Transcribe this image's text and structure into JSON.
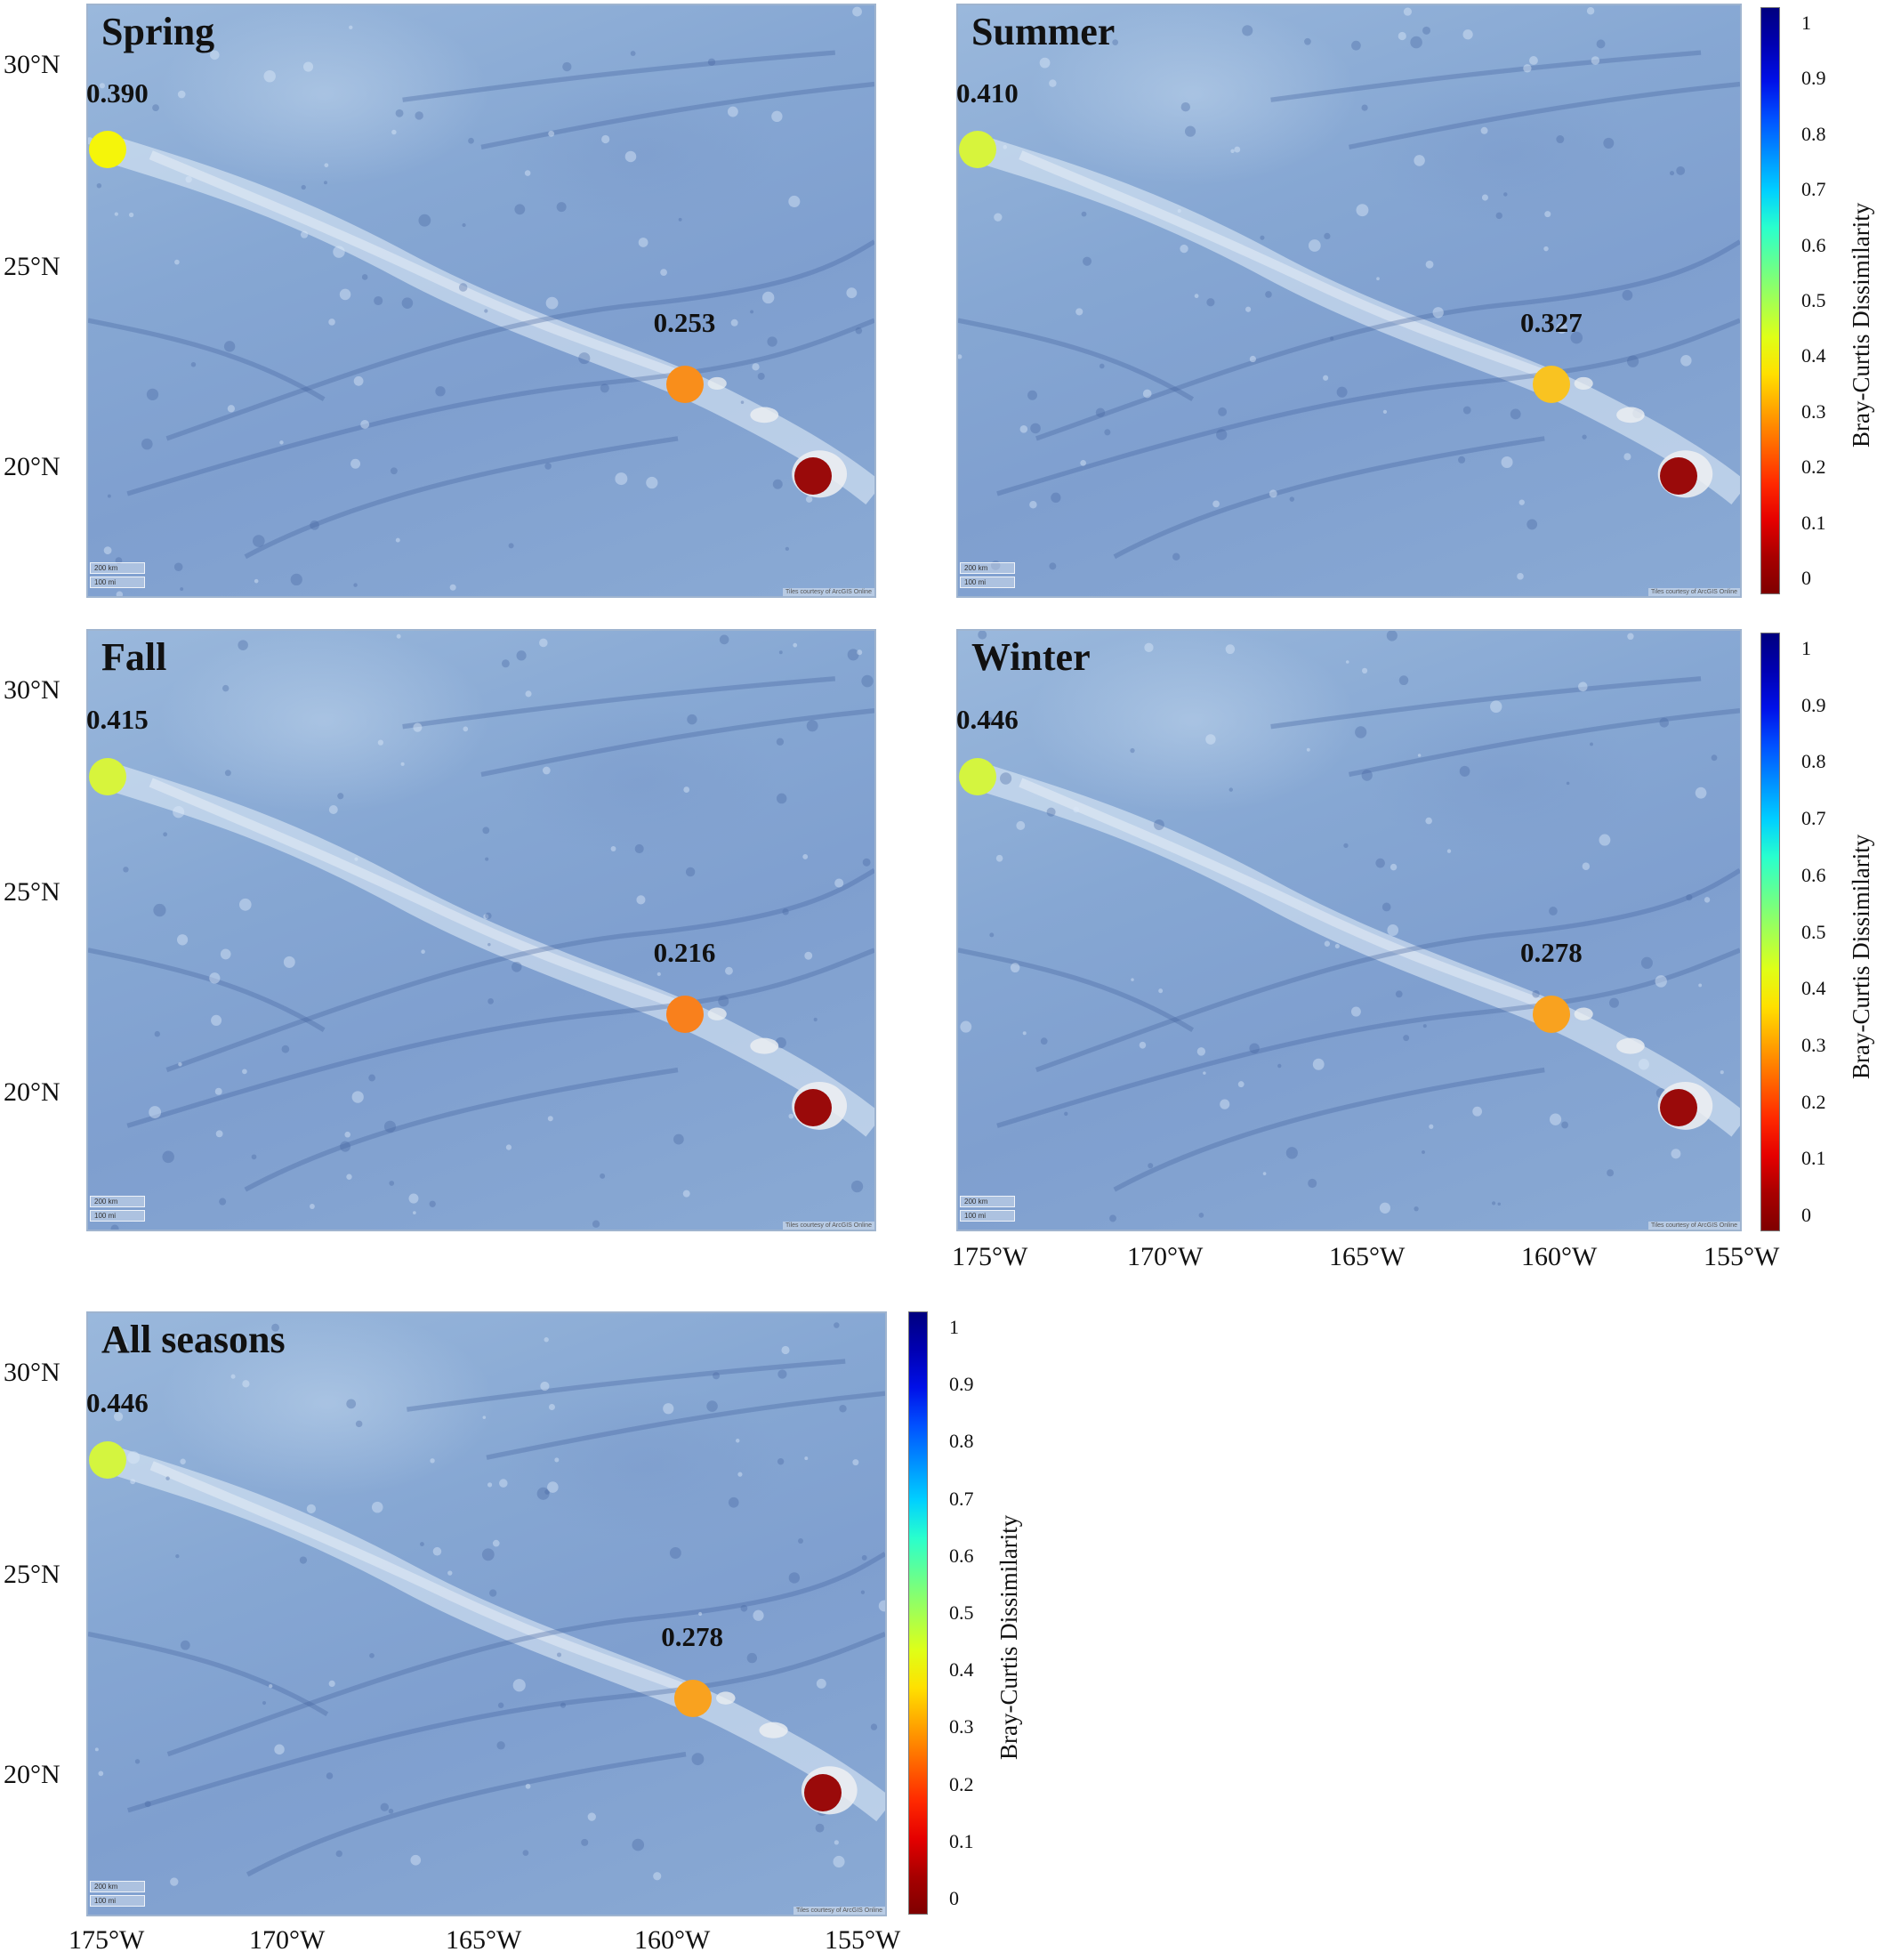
{
  "panels": [
    {
      "id": "spring",
      "title": "Spring",
      "sites": [
        {
          "label": "0.390",
          "value": 0.39,
          "color": "#f5f50a"
        },
        {
          "label": "0.253",
          "value": 0.253,
          "color": "#f98e1b"
        },
        {
          "label": "",
          "value": 0.0,
          "color": "#9a0a0a"
        }
      ]
    },
    {
      "id": "summer",
      "title": "Summer",
      "sites": [
        {
          "label": "0.410",
          "value": 0.41,
          "color": "#d7f43c"
        },
        {
          "label": "0.327",
          "value": 0.327,
          "color": "#f9c321"
        },
        {
          "label": "",
          "value": 0.0,
          "color": "#9a0a0a"
        }
      ]
    },
    {
      "id": "fall",
      "title": "Fall",
      "sites": [
        {
          "label": "0.415",
          "value": 0.415,
          "color": "#d7f43c"
        },
        {
          "label": "0.216",
          "value": 0.216,
          "color": "#f9801c"
        },
        {
          "label": "",
          "value": 0.0,
          "color": "#9a0a0a"
        }
      ]
    },
    {
      "id": "winter",
      "title": "Winter",
      "sites": [
        {
          "label": "0.446",
          "value": 0.446,
          "color": "#d4f53f"
        },
        {
          "label": "0.278",
          "value": 0.278,
          "color": "#f9a21f"
        },
        {
          "label": "",
          "value": 0.0,
          "color": "#9a0a0a"
        }
      ]
    },
    {
      "id": "all",
      "title": "All seasons",
      "sites": [
        {
          "label": "0.446",
          "value": 0.446,
          "color": "#d4f53f"
        },
        {
          "label": "0.278",
          "value": 0.278,
          "color": "#f9a21f"
        },
        {
          "label": "",
          "value": 0.0,
          "color": "#9a0a0a"
        }
      ]
    }
  ],
  "lat_labels": [
    "30°N",
    "25°N",
    "20°N"
  ],
  "lon_labels": [
    "175°W",
    "170°W",
    "165°W",
    "160°W",
    "155°W"
  ],
  "colorbar": {
    "title": "Bray-Curtis Dissimilarity",
    "ticks": [
      "1",
      "0.9",
      "0.8",
      "0.7",
      "0.6",
      "0.5",
      "0.4",
      "0.3",
      "0.2",
      "0.1",
      "0"
    ],
    "colors": [
      "#00007f",
      "#0000b2",
      "#0010e8",
      "#0050ff",
      "#0090ff",
      "#00d0ff",
      "#29ffcd",
      "#66ff90",
      "#a3ff53",
      "#dfff17",
      "#ffe000",
      "#ffa300",
      "#ff6600",
      "#ff2900",
      "#e50000",
      "#a80000",
      "#7f0000"
    ]
  },
  "scalebar": {
    "km": "200 km",
    "mi": "100 mi"
  },
  "credit": "Tiles courtesy of ArcGIS Online"
}
